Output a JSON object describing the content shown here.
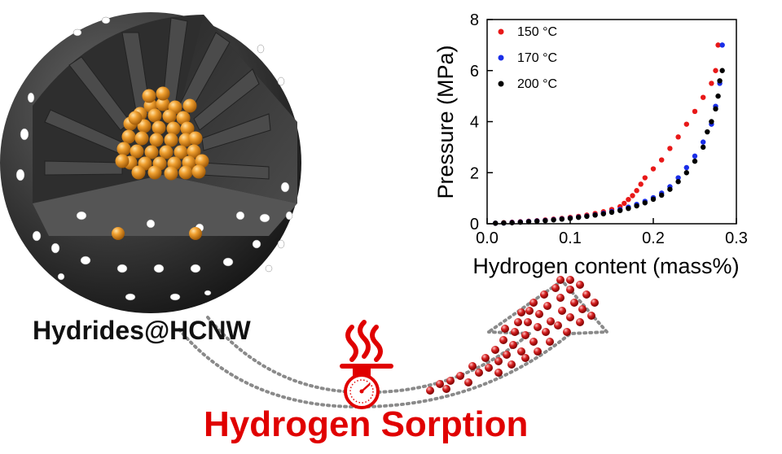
{
  "labels": {
    "material": "Hydrides@HCNW",
    "process": "Hydrogen Sorption"
  },
  "colors": {
    "process_text": "#e00000",
    "sphere": "#3a3a3a",
    "hydride_particles": "#e8921e",
    "hydrogen_molecules": "#cc1a1a",
    "arrow_dots": "#8a8a8a"
  },
  "icons": [
    "heat-waves-icon",
    "pressure-gauge-icon"
  ],
  "chart_data": {
    "type": "scatter",
    "xlabel": "Hydrogen content (mass%)",
    "ylabel": "Pressure (MPa)",
    "xlim": [
      0,
      0.3
    ],
    "ylim": [
      0,
      8
    ],
    "xticks": [
      0.0,
      0.1,
      0.2,
      0.3
    ],
    "xtick_labels": [
      "0.0",
      "0.1",
      "0.2",
      "0.3"
    ],
    "yticks": [
      0,
      2,
      4,
      6,
      8
    ],
    "ytick_labels": [
      "0",
      "2",
      "4",
      "6",
      "8"
    ],
    "grid": false,
    "legend_position": "top-left",
    "series": [
      {
        "name": "150 °C",
        "color": "#e81818",
        "points": [
          [
            0.01,
            0.02
          ],
          [
            0.02,
            0.04
          ],
          [
            0.03,
            0.06
          ],
          [
            0.04,
            0.08
          ],
          [
            0.05,
            0.1
          ],
          [
            0.06,
            0.12
          ],
          [
            0.07,
            0.15
          ],
          [
            0.08,
            0.18
          ],
          [
            0.09,
            0.21
          ],
          [
            0.1,
            0.25
          ],
          [
            0.11,
            0.29
          ],
          [
            0.12,
            0.34
          ],
          [
            0.13,
            0.4
          ],
          [
            0.14,
            0.47
          ],
          [
            0.15,
            0.56
          ],
          [
            0.16,
            0.67
          ],
          [
            0.165,
            0.8
          ],
          [
            0.17,
            0.95
          ],
          [
            0.175,
            1.1
          ],
          [
            0.18,
            1.3
          ],
          [
            0.185,
            1.55
          ],
          [
            0.19,
            1.8
          ],
          [
            0.2,
            2.15
          ],
          [
            0.21,
            2.5
          ],
          [
            0.22,
            2.95
          ],
          [
            0.23,
            3.4
          ],
          [
            0.24,
            3.9
          ],
          [
            0.25,
            4.4
          ],
          [
            0.26,
            4.95
          ],
          [
            0.27,
            5.5
          ],
          [
            0.275,
            6.0
          ],
          [
            0.278,
            7.0
          ]
        ]
      },
      {
        "name": "170 °C",
        "color": "#1a2ee8",
        "points": [
          [
            0.01,
            0.02
          ],
          [
            0.02,
            0.03
          ],
          [
            0.03,
            0.05
          ],
          [
            0.04,
            0.07
          ],
          [
            0.05,
            0.09
          ],
          [
            0.06,
            0.11
          ],
          [
            0.07,
            0.13
          ],
          [
            0.08,
            0.16
          ],
          [
            0.09,
            0.19
          ],
          [
            0.1,
            0.22
          ],
          [
            0.11,
            0.26
          ],
          [
            0.12,
            0.3
          ],
          [
            0.13,
            0.35
          ],
          [
            0.14,
            0.41
          ],
          [
            0.15,
            0.48
          ],
          [
            0.16,
            0.56
          ],
          [
            0.17,
            0.65
          ],
          [
            0.18,
            0.76
          ],
          [
            0.19,
            0.88
          ],
          [
            0.2,
            1.02
          ],
          [
            0.21,
            1.2
          ],
          [
            0.22,
            1.45
          ],
          [
            0.23,
            1.8
          ],
          [
            0.24,
            2.2
          ],
          [
            0.25,
            2.65
          ],
          [
            0.26,
            3.2
          ],
          [
            0.27,
            3.9
          ],
          [
            0.275,
            4.6
          ],
          [
            0.28,
            5.5
          ],
          [
            0.283,
            7.0
          ]
        ]
      },
      {
        "name": "200 °C",
        "color": "#000000",
        "points": [
          [
            0.01,
            0.02
          ],
          [
            0.02,
            0.03
          ],
          [
            0.03,
            0.04
          ],
          [
            0.04,
            0.06
          ],
          [
            0.05,
            0.08
          ],
          [
            0.06,
            0.1
          ],
          [
            0.07,
            0.12
          ],
          [
            0.08,
            0.15
          ],
          [
            0.09,
            0.18
          ],
          [
            0.1,
            0.21
          ],
          [
            0.11,
            0.25
          ],
          [
            0.12,
            0.29
          ],
          [
            0.13,
            0.34
          ],
          [
            0.14,
            0.39
          ],
          [
            0.15,
            0.45
          ],
          [
            0.16,
            0.52
          ],
          [
            0.17,
            0.6
          ],
          [
            0.18,
            0.7
          ],
          [
            0.19,
            0.82
          ],
          [
            0.2,
            0.96
          ],
          [
            0.21,
            1.12
          ],
          [
            0.22,
            1.35
          ],
          [
            0.23,
            1.65
          ],
          [
            0.24,
            2.0
          ],
          [
            0.25,
            2.45
          ],
          [
            0.26,
            3.0
          ],
          [
            0.265,
            3.6
          ],
          [
            0.27,
            4.0
          ],
          [
            0.275,
            4.5
          ],
          [
            0.278,
            5.0
          ],
          [
            0.28,
            5.6
          ],
          [
            0.283,
            6.0
          ]
        ]
      }
    ]
  }
}
